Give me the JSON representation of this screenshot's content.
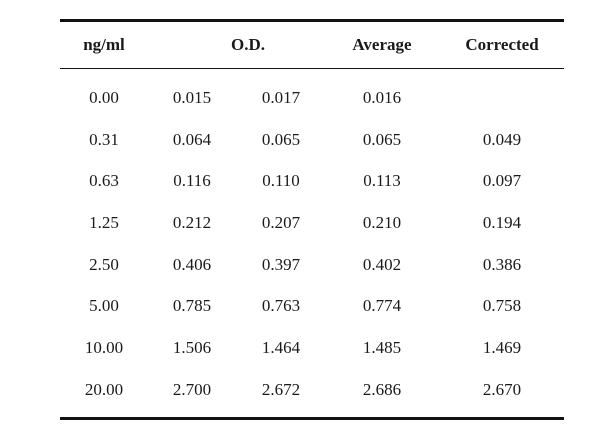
{
  "table": {
    "headers": {
      "concentration": "ng/ml",
      "od": "O.D.",
      "average": "Average",
      "corrected": "Corrected"
    },
    "rows": [
      {
        "conc": "0.00",
        "od1": "0.015",
        "od2": "0.017",
        "avg": "0.016",
        "corr": ""
      },
      {
        "conc": "0.31",
        "od1": "0.064",
        "od2": "0.065",
        "avg": "0.065",
        "corr": "0.049"
      },
      {
        "conc": "0.63",
        "od1": "0.116",
        "od2": "0.110",
        "avg": "0.113",
        "corr": "0.097"
      },
      {
        "conc": "1.25",
        "od1": "0.212",
        "od2": "0.207",
        "avg": "0.210",
        "corr": "0.194"
      },
      {
        "conc": "2.50",
        "od1": "0.406",
        "od2": "0.397",
        "avg": "0.402",
        "corr": "0.386"
      },
      {
        "conc": "5.00",
        "od1": "0.785",
        "od2": "0.763",
        "avg": "0.774",
        "corr": "0.758"
      },
      {
        "conc": "10.00",
        "od1": "1.506",
        "od2": "1.464",
        "avg": "1.485",
        "corr": "1.469"
      },
      {
        "conc": "20.00",
        "od1": "2.700",
        "od2": "2.672",
        "avg": "2.686",
        "corr": "2.670"
      }
    ]
  }
}
